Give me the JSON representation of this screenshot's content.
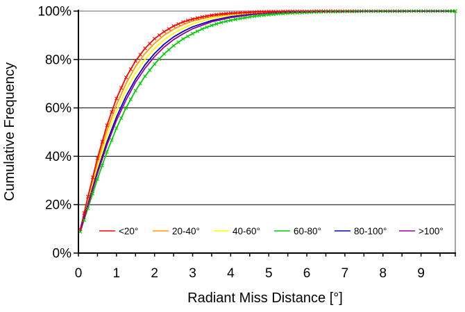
{
  "chart_data": {
    "type": "line",
    "title": "",
    "xlabel": "Radiant Miss Distance [°]",
    "ylabel": "Cumulative Frequency",
    "xlim": [
      0,
      9.9
    ],
    "ylim": [
      0,
      100
    ],
    "grid": "horizontal-black-20pct-steps",
    "plot_border_color": "#808080",
    "axis_color": "#000000",
    "background": "#FFFFFF",
    "legend_position": "bottom-inside-row",
    "x_minor_tick_step": 0.5,
    "x_ticks": [
      {
        "value": 0,
        "label": "0"
      },
      {
        "value": 1,
        "label": "1"
      },
      {
        "value": 2,
        "label": "2"
      },
      {
        "value": 3,
        "label": "3"
      },
      {
        "value": 4,
        "label": "4"
      },
      {
        "value": 5,
        "label": "5"
      },
      {
        "value": 6,
        "label": "6"
      },
      {
        "value": 7,
        "label": "7"
      },
      {
        "value": 8,
        "label": "8"
      },
      {
        "value": 9,
        "label": "9"
      }
    ],
    "y_ticks": [
      {
        "value": 0,
        "label": "0%"
      },
      {
        "value": 20,
        "label": "20%"
      },
      {
        "value": 40,
        "label": "40%"
      },
      {
        "value": 60,
        "label": "60%"
      },
      {
        "value": 80,
        "label": "80%"
      },
      {
        "value": 100,
        "label": "100%"
      }
    ],
    "series": [
      {
        "name": "<20°",
        "color": "#FF0000",
        "marker": "x",
        "x": [
          0.05,
          0.25,
          0.5,
          0.75,
          1,
          1.25,
          1.5,
          1.75,
          2,
          2.25,
          2.5,
          2.75,
          3,
          3.25,
          3.5,
          3.75,
          4,
          4.25,
          4.5,
          4.75,
          5,
          5.25,
          5.5,
          5.75,
          6,
          6.25,
          6.5,
          6.75,
          7,
          7.25,
          7.5,
          7.75,
          8,
          8.25,
          8.5,
          8.75,
          9,
          9.25,
          9.5,
          9.75,
          9.9
        ],
        "y": [
          9.8,
          23.3,
          39.2,
          52.8,
          63.9,
          72.6,
          79.4,
          84.6,
          88.6,
          91.5,
          93.8,
          95.5,
          96.7,
          97.6,
          98.3,
          98.8,
          99.1,
          99.3,
          99.5,
          99.7,
          99.8,
          99.8,
          99.9,
          99.9,
          99.9,
          100,
          100,
          100,
          100,
          100,
          100,
          100,
          100,
          100,
          100,
          100,
          100,
          100,
          100,
          100,
          100
        ]
      },
      {
        "name": "20-40°",
        "color": "#FF9900",
        "marker": "none",
        "x": [
          0.05,
          0.25,
          0.5,
          0.75,
          1,
          1.25,
          1.5,
          1.75,
          2,
          2.25,
          2.5,
          2.75,
          3,
          3.5,
          4,
          4.5,
          5,
          5.5,
          6,
          6.5,
          7,
          8,
          9,
          9.9
        ],
        "y": [
          9.5,
          22.1,
          37.4,
          50.6,
          61.3,
          70.1,
          77.1,
          82.5,
          86.7,
          90.0,
          92.5,
          94.4,
          95.9,
          97.7,
          98.8,
          99.3,
          99.7,
          99.8,
          99.9,
          100,
          100,
          100,
          100,
          100
        ]
      },
      {
        "name": "40-60°",
        "color": "#FFFF00",
        "marker": "none",
        "x": [
          0.05,
          0.25,
          0.5,
          0.75,
          1,
          1.25,
          1.5,
          1.75,
          2,
          2.25,
          2.5,
          2.75,
          3,
          3.5,
          4,
          4.5,
          5,
          5.5,
          6,
          6.5,
          7,
          8,
          9,
          9.9
        ],
        "y": [
          9.3,
          21.1,
          35.5,
          48.3,
          58.7,
          67.4,
          74.5,
          80.1,
          84.6,
          88.1,
          90.8,
          92.9,
          94.7,
          96.9,
          98.3,
          99.0,
          99.4,
          99.7,
          99.8,
          99.9,
          100,
          100,
          100,
          100
        ]
      },
      {
        "name": "60-80°",
        "color": "#00CC00",
        "marker": "x",
        "x": [
          0.05,
          0.25,
          0.5,
          0.75,
          1,
          1.25,
          1.5,
          1.75,
          2,
          2.25,
          2.5,
          2.75,
          3,
          3.25,
          3.5,
          3.75,
          4,
          4.25,
          4.5,
          4.75,
          5,
          5.25,
          5.5,
          5.75,
          6,
          6.25,
          6.5,
          6.75,
          7,
          7.25,
          7.5,
          7.75,
          8,
          8.25,
          8.5,
          8.75,
          9,
          9.25,
          9.5,
          9.75,
          9.9
        ],
        "y": [
          8.8,
          18.5,
          30.6,
          41.8,
          51.6,
          60.0,
          67.1,
          73.1,
          78.1,
          82.3,
          85.7,
          88.5,
          90.7,
          92.6,
          94.1,
          95.3,
          96.2,
          96.9,
          97.6,
          98.1,
          98.5,
          98.9,
          99.1,
          99.3,
          99.4,
          99.6,
          99.7,
          99.7,
          99.8,
          99.8,
          99.9,
          99.9,
          99.9,
          99.9,
          99.9,
          100,
          100,
          100,
          100,
          100,
          100
        ]
      },
      {
        "name": "80-100°",
        "color": "#0000CC",
        "marker": "none",
        "x": [
          0.05,
          0.25,
          0.5,
          0.75,
          1,
          1.25,
          1.5,
          1.75,
          2,
          2.25,
          2.5,
          2.75,
          3,
          3.5,
          4,
          4.5,
          5,
          5.5,
          6,
          6.5,
          7,
          8,
          9,
          9.9
        ],
        "y": [
          9.1,
          20.2,
          33.8,
          45.9,
          56.2,
          64.8,
          71.9,
          77.8,
          82.5,
          86.3,
          89.3,
          91.6,
          93.5,
          96.1,
          97.7,
          98.6,
          99.2,
          99.6,
          99.8,
          99.9,
          99.9,
          100,
          100,
          100
        ]
      },
      {
        "name": ">100°",
        "color": "#990099",
        "marker": "none",
        "x": [
          0.05,
          0.25,
          0.5,
          0.75,
          1,
          1.25,
          1.5,
          1.75,
          2,
          2.25,
          2.5,
          2.75,
          3,
          3.5,
          4,
          4.5,
          5,
          5.5,
          6,
          6.5,
          7,
          8,
          9,
          9.9
        ],
        "y": [
          9.0,
          19.7,
          32.8,
          44.6,
          54.8,
          63.3,
          70.6,
          76.4,
          81.2,
          85.1,
          88.2,
          90.6,
          92.7,
          95.6,
          97.3,
          98.4,
          99.1,
          99.4,
          99.7,
          99.8,
          99.9,
          100,
          100,
          100
        ]
      }
    ]
  }
}
